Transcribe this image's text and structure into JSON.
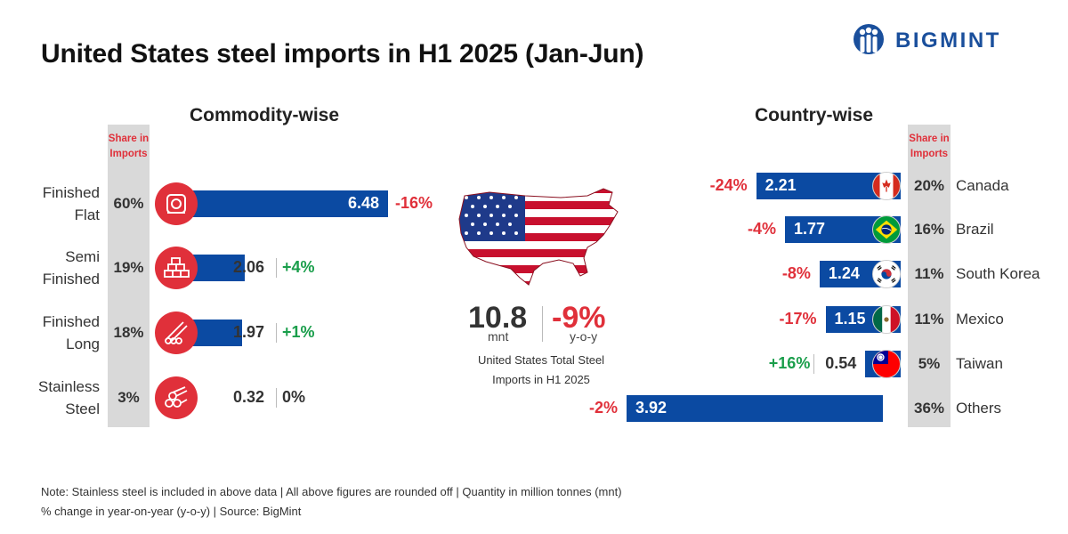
{
  "title": "United States steel imports in H1 2025 (Jan-Jun)",
  "logo": {
    "text": "BIGMINT",
    "color": "#1a4f9c"
  },
  "colors": {
    "bar": "#0b4aa2",
    "negative": "#e0303a",
    "positive": "#1a9e4b",
    "icon_bg": "#e0303a",
    "share_bg": "#d9d9d9"
  },
  "commodity": {
    "title": "Commodity-wise",
    "share_header": [
      "Share in",
      "Imports"
    ],
    "rows": [
      {
        "label": [
          "Finished",
          "Flat"
        ],
        "share": "60%",
        "value": "6.48",
        "change": "-16%",
        "sign": "neg",
        "icon": "coil-icon"
      },
      {
        "label": [
          "Semi",
          "Finished"
        ],
        "share": "19%",
        "value": "2.06",
        "change": "+4%",
        "sign": "pos",
        "icon": "billets-icon"
      },
      {
        "label": [
          "Finished",
          "Long"
        ],
        "share": "18%",
        "value": "1.97",
        "change": "+1%",
        "sign": "pos",
        "icon": "bars-icon"
      },
      {
        "label": [
          "Stainless",
          "Steel"
        ],
        "share": "3%",
        "value": "0.32",
        "change": "0%",
        "sign": "neu",
        "icon": "pipes-icon"
      }
    ]
  },
  "total": {
    "value": "10.8",
    "unit": "mnt",
    "change": "-9%",
    "change_unit": "y-o-y",
    "description": [
      "United States Total Steel",
      "Imports in H1 2025"
    ]
  },
  "country": {
    "title": "Country-wise",
    "share_header": [
      "Share in",
      "Imports"
    ],
    "rows": [
      {
        "name": "Canada",
        "share": "20%",
        "value": "2.21",
        "change": "-24%",
        "sign": "neg",
        "flag": "canada-flag-icon"
      },
      {
        "name": "Brazil",
        "share": "16%",
        "value": "1.77",
        "change": "-4%",
        "sign": "neg",
        "flag": "brazil-flag-icon"
      },
      {
        "name": "South Korea",
        "share": "11%",
        "value": "1.24",
        "change": "-8%",
        "sign": "neg",
        "flag": "south-korea-flag-icon"
      },
      {
        "name": "Mexico",
        "share": "11%",
        "value": "1.15",
        "change": "-17%",
        "sign": "neg",
        "flag": "mexico-flag-icon"
      },
      {
        "name": "Taiwan",
        "share": "5%",
        "value": "0.54",
        "change": "+16%",
        "sign": "pos",
        "flag": "taiwan-flag-icon"
      },
      {
        "name": "Others",
        "share": "36%",
        "value": "3.92",
        "change": "-2%",
        "sign": "neg",
        "flag": ""
      }
    ]
  },
  "note": [
    "Note: Stainless steel is included in above data | All above figures are rounded off | Quantity in million tonnes (mnt)",
    "% change in year-on-year (y-o-y) | Source: BigMint"
  ],
  "chart_data": [
    {
      "type": "bar",
      "title": "Commodity-wise",
      "categories": [
        "Finished Flat",
        "Semi Finished",
        "Finished Long",
        "Stainless Steel"
      ],
      "values": [
        6.48,
        2.06,
        1.97,
        0.32
      ],
      "share_in_imports": [
        "60%",
        "19%",
        "18%",
        "3%"
      ],
      "yoy_change": [
        "-16%",
        "+4%",
        "+1%",
        "0%"
      ],
      "orientation": "horizontal"
    },
    {
      "type": "bar",
      "title": "Country-wise",
      "categories": [
        "Canada",
        "Brazil",
        "South Korea",
        "Mexico",
        "Taiwan",
        "Others"
      ],
      "values": [
        2.21,
        1.77,
        1.24,
        1.15,
        0.54,
        3.92
      ],
      "share_in_imports": [
        "20%",
        "16%",
        "11%",
        "11%",
        "5%",
        "36%"
      ],
      "yoy_change": [
        "-24%",
        "-4%",
        "-8%",
        "-17%",
        "+16%",
        "-2%"
      ],
      "orientation": "horizontal"
    }
  ]
}
